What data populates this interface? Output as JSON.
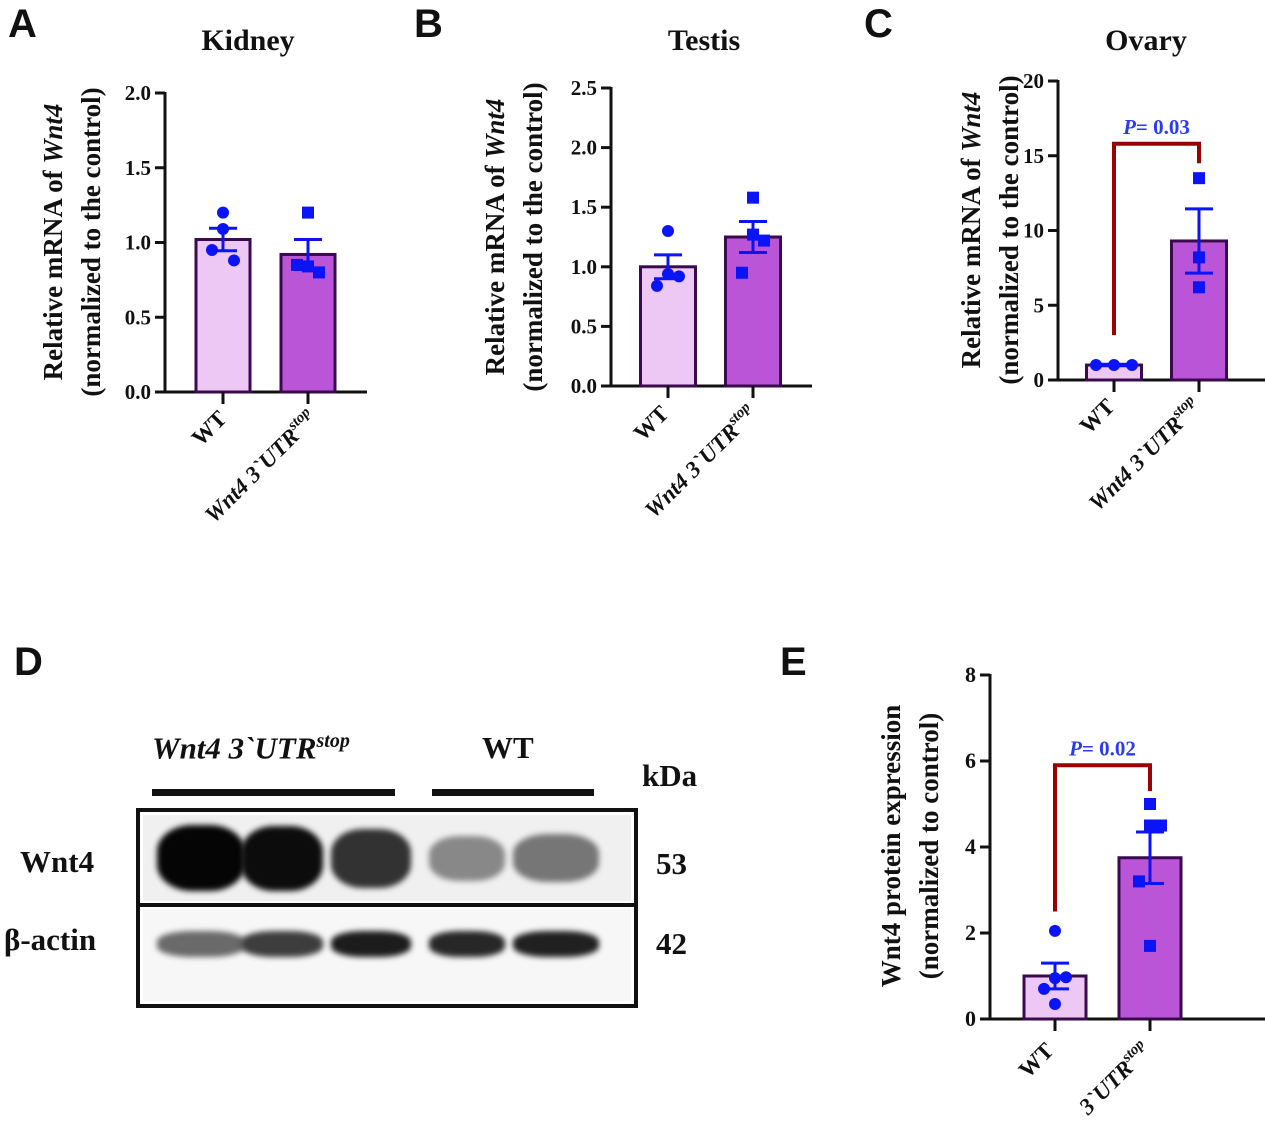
{
  "panels": {
    "A": "A",
    "B": "B",
    "C": "C",
    "D": "D",
    "E": "E"
  },
  "colors": {
    "wt_bar": "#edc8f5",
    "mut_bar": "#b955d6",
    "bar_edge": "#3a0a4e",
    "points": "#0a14f5",
    "bracket": "#9b0000",
    "pvalue": "#2a3cf0"
  },
  "chart_data": [
    {
      "id": "A",
      "type": "bar",
      "title": "Kidney",
      "ylabel_line1_prefix": "Relative mRNA of ",
      "ylabel_line1_gene": "Wnt4",
      "ylabel_line2": "(normalized to the control)",
      "ylim": [
        0,
        2.0
      ],
      "yticks": [
        "0.0",
        "0.5",
        "1.0",
        "1.5",
        "2.0"
      ],
      "ytick_values": [
        0,
        0.5,
        1.0,
        1.5,
        2.0
      ],
      "categories": [
        "WT",
        "Wnt4 3`UTR"
      ],
      "category_superscript": [
        "",
        "stop"
      ],
      "values": [
        1.02,
        0.92
      ],
      "sem": [
        0.075,
        0.1
      ],
      "points": [
        [
          1.2,
          1.09,
          0.88,
          0.95
        ],
        [
          1.2,
          0.84,
          0.8,
          0.85
        ]
      ],
      "markers": [
        "circle",
        "square"
      ],
      "pvalue": null
    },
    {
      "id": "B",
      "type": "bar",
      "title": "Testis",
      "ylabel_line1_prefix": "Relative mRNA of ",
      "ylabel_line1_gene": "Wnt4",
      "ylabel_line2": "(normalized to the control)",
      "ylim": [
        0,
        2.5
      ],
      "yticks": [
        "0.0",
        "0.5",
        "1.0",
        "1.5",
        "2.0",
        "2.5"
      ],
      "ytick_values": [
        0,
        0.5,
        1.0,
        1.5,
        2.0,
        2.5
      ],
      "categories": [
        "WT",
        "Wnt4 3`UTR"
      ],
      "category_superscript": [
        "",
        "stop"
      ],
      "values": [
        1.0,
        1.25
      ],
      "sem": [
        0.1,
        0.13
      ],
      "points": [
        [
          1.3,
          0.94,
          0.92,
          0.84
        ],
        [
          1.58,
          1.27,
          1.22,
          0.95
        ]
      ],
      "markers": [
        "circle",
        "square"
      ],
      "pvalue": null
    },
    {
      "id": "C",
      "type": "bar",
      "title": "Ovary",
      "ylabel_line1_prefix": "Relative mRNA of ",
      "ylabel_line1_gene": "Wnt4",
      "ylabel_line2": "(normalized to the control)",
      "ylim": [
        0,
        20
      ],
      "yticks": [
        "0",
        "5",
        "10",
        "15",
        "20"
      ],
      "ytick_values": [
        0,
        5,
        10,
        15,
        20
      ],
      "categories": [
        "WT",
        "Wnt4 3`UTR"
      ],
      "category_superscript": [
        "",
        "stop"
      ],
      "values": [
        1.0,
        9.3
      ],
      "sem": [
        0.05,
        2.15
      ],
      "points": [
        [
          1.0,
          1.0,
          1.0
        ],
        [
          13.5,
          8.2,
          6.2
        ]
      ],
      "markers": [
        "circle",
        "square"
      ],
      "pvalue": {
        "label": "P",
        "text": "= 0.03",
        "bracket_left": 3.0,
        "bracket_top": 15.8,
        "bracket_right": 14.5
      }
    },
    {
      "id": "E",
      "type": "bar",
      "title": "",
      "ylabel_line1_prefix": "Wnt4 protein expression",
      "ylabel_line1_gene": "",
      "ylabel_line2": "(normalized to control)",
      "ylim": [
        0,
        8
      ],
      "yticks": [
        "0",
        "2",
        "4",
        "6",
        "8"
      ],
      "ytick_values": [
        0,
        2,
        4,
        6,
        8
      ],
      "categories": [
        "WT",
        "3`UTR"
      ],
      "category_superscript": [
        "",
        "stop"
      ],
      "values": [
        1.0,
        3.75
      ],
      "sem": [
        0.3,
        0.6
      ],
      "points": [
        [
          2.05,
          0.95,
          0.97,
          0.7,
          0.35
        ],
        [
          5.0,
          4.5,
          4.5,
          3.2,
          1.7
        ]
      ],
      "markers": [
        "circle",
        "square"
      ],
      "pvalue": {
        "label": "P",
        "text": "= 0.02",
        "bracket_left": 2.5,
        "bracket_top": 5.9,
        "bracket_right": 5.3
      }
    }
  ],
  "blot": {
    "group_mut_prefix": "Wnt4 3`UTR",
    "group_mut_sup": "stop",
    "group_wt": "WT",
    "kda_label": "kDa",
    "rows": [
      {
        "name": "Wnt4",
        "kda": "53",
        "intensities": [
          1.0,
          0.97,
          0.8,
          0.42,
          0.5
        ]
      },
      {
        "name": "β-actin",
        "kda": "42",
        "intensities": [
          0.55,
          0.75,
          0.9,
          0.85,
          0.88
        ]
      }
    ]
  }
}
